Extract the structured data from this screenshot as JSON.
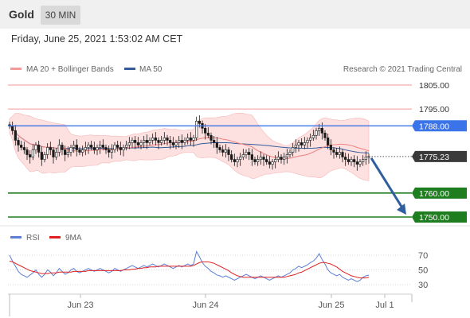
{
  "header": {
    "title": "Gold",
    "timeframe": "30 MIN"
  },
  "datetime": "Friday, June 25, 2021 1:53:02 AM CET",
  "legend": {
    "ma20": "MA 20 + Bollinger Bands",
    "ma50": "MA 50",
    "credit": "Research © 2021 Trading Central"
  },
  "colors": {
    "resistance": "#f39a9a",
    "pivot": "#3b73e8",
    "support": "#1e7d1e",
    "price_tag": "#3a3a3a",
    "arrow": "#2f5f9e",
    "candle": "#1a1a1a",
    "bollinger_fill": "#fde0e0",
    "ma20": "#f08080",
    "ma50": "#345b9a",
    "rsi": "#5b7fd6",
    "rsi_ma": "#e02020"
  },
  "chart_data": [
    {
      "type": "candlestick",
      "title": "Gold",
      "ylim": [
        1744,
        1812
      ],
      "x_ticks": [
        "Jun 23",
        "Jun 24",
        "Jun 25",
        "Jul 1"
      ],
      "levels": [
        {
          "value": 1805.0,
          "label": "1805.00",
          "kind": "resistance"
        },
        {
          "value": 1795.0,
          "label": "1795.00",
          "kind": "resistance"
        },
        {
          "value": 1788.0,
          "label": "1788.00",
          "kind": "pivot"
        },
        {
          "value": 1775.23,
          "label": "1775.23",
          "kind": "last"
        },
        {
          "value": 1760.0,
          "label": "1760.00",
          "kind": "support"
        },
        {
          "value": 1750.0,
          "label": "1750.00",
          "kind": "support"
        }
      ],
      "close": [
        1788,
        1786,
        1782,
        1780,
        1779,
        1778,
        1776,
        1775,
        1778,
        1780,
        1777,
        1774,
        1776,
        1779,
        1778,
        1775,
        1777,
        1780,
        1778,
        1776,
        1777,
        1779,
        1780,
        1778,
        1777,
        1778,
        1779,
        1780,
        1779,
        1778,
        1779,
        1780,
        1779,
        1778,
        1777,
        1778,
        1780,
        1779,
        1778,
        1779,
        1780,
        1781,
        1782,
        1781,
        1780,
        1781,
        1782,
        1781,
        1782,
        1783,
        1782,
        1781,
        1782,
        1783,
        1782,
        1781,
        1780,
        1781,
        1782,
        1781,
        1782,
        1783,
        1782,
        1783,
        1790,
        1789,
        1787,
        1785,
        1784,
        1782,
        1781,
        1779,
        1778,
        1777,
        1778,
        1776,
        1774,
        1773,
        1774,
        1775,
        1776,
        1777,
        1776,
        1774,
        1773,
        1774,
        1775,
        1774,
        1773,
        1772,
        1773,
        1774,
        1775,
        1774,
        1775,
        1776,
        1777,
        1779,
        1780,
        1781,
        1780,
        1781,
        1782,
        1783,
        1784,
        1786,
        1787,
        1785,
        1783,
        1780,
        1778,
        1777,
        1776,
        1777,
        1775,
        1774,
        1773,
        1774,
        1773,
        1772,
        1773,
        1774,
        1775,
        1775.23
      ],
      "rsi": {
        "name": "RSI",
        "ma_name": "9MA",
        "ticks": [
          70,
          50,
          30
        ],
        "ylim": [
          20,
          80
        ],
        "values": [
          70,
          62,
          55,
          48,
          44,
          42,
          40,
          43,
          46,
          50,
          44,
          40,
          44,
          50,
          47,
          42,
          46,
          52,
          48,
          44,
          46,
          50,
          52,
          48,
          46,
          48,
          50,
          52,
          50,
          48,
          50,
          52,
          50,
          48,
          46,
          48,
          52,
          50,
          48,
          50,
          52,
          54,
          56,
          54,
          52,
          54,
          56,
          54,
          56,
          58,
          56,
          54,
          56,
          58,
          56,
          54,
          52,
          54,
          56,
          54,
          56,
          58,
          56,
          58,
          75,
          68,
          60,
          55,
          52,
          48,
          46,
          43,
          42,
          40,
          42,
          40,
          38,
          36,
          38,
          40,
          42,
          44,
          42,
          40,
          38,
          40,
          42,
          40,
          38,
          36,
          38,
          40,
          42,
          40,
          42,
          44,
          46,
          50,
          52,
          55,
          53,
          55,
          57,
          60,
          62,
          66,
          72,
          64,
          58,
          50,
          46,
          44,
          42,
          44,
          40,
          38,
          36,
          38,
          36,
          34,
          36,
          40,
          42,
          43
        ],
        "ma_values": [
          62,
          61,
          59,
          57,
          55,
          53,
          51,
          49,
          48,
          47,
          46,
          45,
          45,
          45,
          46,
          46,
          46,
          47,
          47,
          47,
          47,
          47,
          48,
          48,
          48,
          48,
          48,
          49,
          49,
          49,
          49,
          49,
          49,
          49,
          49,
          49,
          49,
          49,
          49,
          50,
          50,
          50,
          51,
          51,
          52,
          52,
          53,
          53,
          54,
          54,
          54,
          55,
          55,
          55,
          55,
          55,
          55,
          55,
          55,
          55,
          55,
          55,
          55,
          56,
          58,
          60,
          61,
          61,
          61,
          60,
          59,
          57,
          55,
          53,
          51,
          49,
          46,
          44,
          42,
          41,
          40,
          40,
          40,
          40,
          40,
          40,
          40,
          40,
          40,
          40,
          40,
          40,
          40,
          40,
          40,
          41,
          42,
          43,
          44,
          46,
          47,
          49,
          51,
          53,
          55,
          57,
          59,
          60,
          60,
          59,
          58,
          56,
          54,
          51,
          48,
          46,
          44,
          42,
          41,
          40,
          39,
          39,
          39,
          40
        ]
      }
    }
  ]
}
